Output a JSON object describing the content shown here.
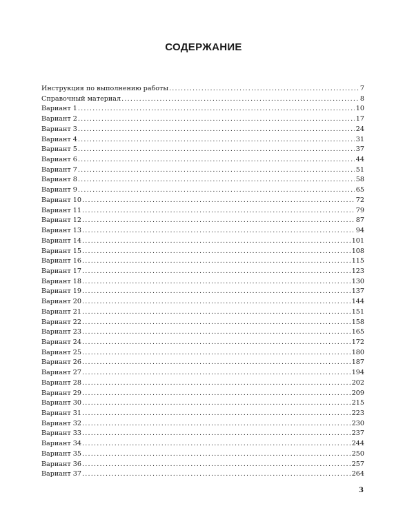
{
  "title": "СОДЕРЖАНИЕ",
  "entries": [
    {
      "label": "Инструкция по выполнению работы",
      "page": "7"
    },
    {
      "label": "Справочный материал",
      "page": "8"
    },
    {
      "label": "Вариант 1",
      "page": "10"
    },
    {
      "label": "Вариант 2",
      "page": "17"
    },
    {
      "label": "Вариант 3",
      "page": "24"
    },
    {
      "label": "Вариант 4",
      "page": "31"
    },
    {
      "label": "Вариант 5",
      "page": "37"
    },
    {
      "label": "Вариант 6",
      "page": "44"
    },
    {
      "label": "Вариант 7",
      "page": "51"
    },
    {
      "label": "Вариант 8",
      "page": "58"
    },
    {
      "label": "Вариант 9",
      "page": "65"
    },
    {
      "label": "Вариант 10",
      "page": "72"
    },
    {
      "label": "Вариант 11",
      "page": "79"
    },
    {
      "label": "Вариант 12",
      "page": "87"
    },
    {
      "label": "Вариант 13",
      "page": "94"
    },
    {
      "label": "Вариант 14",
      "page": "101"
    },
    {
      "label": "Вариант 15",
      "page": "108"
    },
    {
      "label": "Вариант 16",
      "page": "115"
    },
    {
      "label": "Вариант 17",
      "page": "123"
    },
    {
      "label": "Вариант 18",
      "page": "130"
    },
    {
      "label": "Вариант 19",
      "page": "137"
    },
    {
      "label": "Вариант 20",
      "page": "144"
    },
    {
      "label": "Вариант 21",
      "page": "151"
    },
    {
      "label": "Вариант 22",
      "page": "158"
    },
    {
      "label": "Вариант 23",
      "page": "165"
    },
    {
      "label": "Вариант 24",
      "page": "172"
    },
    {
      "label": "Вариант 25",
      "page": "180"
    },
    {
      "label": "Вариант 26",
      "page": "187"
    },
    {
      "label": "Вариант 27",
      "page": "194"
    },
    {
      "label": "Вариант 28",
      "page": "202"
    },
    {
      "label": "Вариант 29",
      "page": "209"
    },
    {
      "label": "Вариант 30",
      "page": "215"
    },
    {
      "label": "Вариант 31",
      "page": "223"
    },
    {
      "label": "Вариант 32",
      "page": "230"
    },
    {
      "label": "Вариант 33",
      "page": "237"
    },
    {
      "label": "Вариант 34",
      "page": "244"
    },
    {
      "label": "Вариант 35",
      "page": "250"
    },
    {
      "label": "Вариант 36",
      "page": "257"
    },
    {
      "label": "Вариант 37",
      "page": "264"
    }
  ],
  "page_number": "3"
}
